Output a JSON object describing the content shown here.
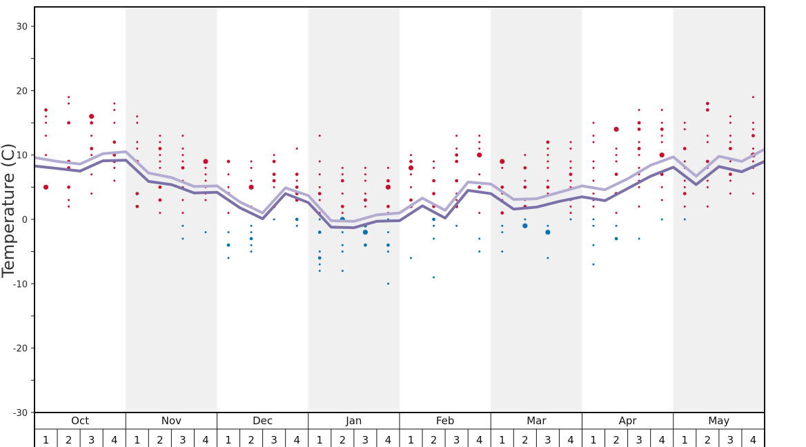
{
  "chart_data": {
    "type": "line",
    "title": "",
    "ylabel": "Temperature (C)",
    "xlabel": "",
    "ylim": [
      -30,
      30
    ],
    "y_ticks": [
      30,
      20,
      10,
      0,
      -10,
      -20,
      -30
    ],
    "grid": false,
    "months": [
      "Oct",
      "Nov",
      "Dec",
      "Jan",
      "Feb",
      "Mar",
      "Apr",
      "May"
    ],
    "weeks": [
      "1",
      "2",
      "3",
      "4"
    ],
    "shaded_months": [
      "Nov",
      "Jan",
      "Mar",
      "May"
    ],
    "colors": {
      "warm_points": "#c8102e",
      "cold_points": "#0a74b3",
      "upper_line": "#b3abd1",
      "lower_line": "#7b70a8",
      "shade": "#f0f0f0"
    },
    "series": [
      {
        "values": [
          9.6,
          9.0,
          8.6,
          10.2,
          10.5,
          7.2,
          6.5,
          5.1,
          5.2,
          2.7,
          1.0,
          4.9,
          3.7,
          -0.2,
          -0.3,
          0.7,
          1.0,
          3.3,
          1.4,
          5.8,
          5.5,
          3.1,
          3.2,
          4.2,
          5.2,
          4.6,
          6.3,
          8.4,
          9.7,
          6.7,
          9.8,
          9.0,
          10.9
        ]
      },
      {
        "values": [
          8.3,
          7.9,
          7.5,
          9.1,
          9.2,
          5.9,
          5.4,
          4.1,
          4.2,
          1.8,
          0.1,
          4.0,
          2.6,
          -1.2,
          -1.3,
          -0.3,
          -0.2,
          2.1,
          0.2,
          4.5,
          4.0,
          1.6,
          1.9,
          2.8,
          3.5,
          2.9,
          4.8,
          6.7,
          8.1,
          5.4,
          8.2,
          7.4,
          9.0
        ]
      }
    ],
    "points": [
      [
        1,
        17,
        2
      ],
      [
        1,
        16,
        1
      ],
      [
        1,
        15,
        1
      ],
      [
        1,
        13,
        1
      ],
      [
        1,
        10,
        1
      ],
      [
        1,
        5,
        3
      ],
      [
        2,
        19,
        1
      ],
      [
        2,
        18,
        1
      ],
      [
        2,
        15,
        2
      ],
      [
        2,
        9,
        2
      ],
      [
        2,
        8,
        2
      ],
      [
        2,
        5,
        2
      ],
      [
        2,
        3,
        1
      ],
      [
        2,
        2,
        1
      ],
      [
        3,
        16,
        3
      ],
      [
        3,
        15,
        2
      ],
      [
        3,
        13,
        1
      ],
      [
        3,
        11,
        2
      ],
      [
        3,
        10,
        1
      ],
      [
        3,
        7,
        1
      ],
      [
        3,
        4,
        1
      ],
      [
        4,
        18,
        1
      ],
      [
        4,
        17,
        1
      ],
      [
        4,
        15,
        1
      ],
      [
        4,
        12,
        2
      ],
      [
        4,
        10,
        2
      ],
      [
        4,
        9,
        2
      ],
      [
        4,
        8,
        1
      ],
      [
        4,
        6,
        1
      ],
      [
        5,
        16,
        1
      ],
      [
        5,
        15,
        1
      ],
      [
        5,
        12,
        1
      ],
      [
        5,
        11,
        1
      ],
      [
        5,
        9,
        2
      ],
      [
        5,
        4,
        2
      ],
      [
        5,
        2,
        2
      ],
      [
        6,
        13,
        1
      ],
      [
        6,
        12,
        1
      ],
      [
        6,
        11,
        2
      ],
      [
        6,
        10,
        1
      ],
      [
        6,
        9,
        1
      ],
      [
        6,
        8,
        1
      ],
      [
        6,
        5,
        2
      ],
      [
        6,
        3,
        2
      ],
      [
        6,
        1,
        1
      ],
      [
        7,
        13,
        1
      ],
      [
        7,
        11,
        1
      ],
      [
        7,
        10,
        1
      ],
      [
        7,
        9,
        1
      ],
      [
        7,
        8,
        2
      ],
      [
        7,
        6,
        1
      ],
      [
        7,
        5,
        1
      ],
      [
        7,
        3,
        1
      ],
      [
        7,
        1,
        1
      ],
      [
        7,
        -1,
        -1
      ],
      [
        7,
        -3,
        -1
      ],
      [
        8,
        9,
        3
      ],
      [
        8,
        8,
        1
      ],
      [
        8,
        7,
        1
      ],
      [
        8,
        6,
        1
      ],
      [
        8,
        5,
        1
      ],
      [
        8,
        4,
        1
      ],
      [
        8,
        3,
        1
      ],
      [
        8,
        -2,
        -1
      ],
      [
        9,
        9,
        2
      ],
      [
        9,
        7,
        1
      ],
      [
        9,
        5,
        1
      ],
      [
        9,
        4,
        2
      ],
      [
        9,
        1,
        1
      ],
      [
        9,
        -2,
        -1
      ],
      [
        9,
        -4,
        -2
      ],
      [
        9,
        -6,
        -1
      ],
      [
        10,
        9,
        1
      ],
      [
        10,
        8,
        1
      ],
      [
        10,
        6,
        1
      ],
      [
        10,
        5,
        3
      ],
      [
        10,
        2,
        1
      ],
      [
        10,
        1,
        1
      ],
      [
        10,
        -1,
        -1
      ],
      [
        10,
        -2,
        -1
      ],
      [
        10,
        -3,
        -2
      ],
      [
        10,
        -4,
        -1
      ],
      [
        10,
        -5,
        -1
      ],
      [
        11,
        10,
        1
      ],
      [
        11,
        9,
        2
      ],
      [
        11,
        7,
        2
      ],
      [
        11,
        6,
        2
      ],
      [
        11,
        5,
        1
      ],
      [
        11,
        3,
        1
      ],
      [
        11,
        2,
        2
      ],
      [
        11,
        0,
        -1
      ],
      [
        12,
        11,
        1
      ],
      [
        12,
        7,
        2
      ],
      [
        12,
        6,
        1
      ],
      [
        12,
        5,
        2
      ],
      [
        12,
        4,
        2
      ],
      [
        12,
        3,
        2
      ],
      [
        12,
        0,
        -2
      ],
      [
        12,
        -1,
        -1
      ],
      [
        13,
        13,
        1
      ],
      [
        13,
        9,
        1
      ],
      [
        13,
        7,
        1
      ],
      [
        13,
        5,
        1
      ],
      [
        13,
        4,
        2
      ],
      [
        13,
        3,
        1
      ],
      [
        13,
        1,
        1
      ],
      [
        13,
        0,
        -1
      ],
      [
        13,
        -2,
        -2
      ],
      [
        13,
        -5,
        -1
      ],
      [
        13,
        -6,
        -2
      ],
      [
        13,
        -7,
        -1
      ],
      [
        13,
        -8,
        -1
      ],
      [
        14,
        8,
        1
      ],
      [
        14,
        7,
        1
      ],
      [
        14,
        6,
        2
      ],
      [
        14,
        4,
        1
      ],
      [
        14,
        2,
        2
      ],
      [
        14,
        1,
        1
      ],
      [
        14,
        0,
        -3
      ],
      [
        14,
        -2,
        -1
      ],
      [
        14,
        -4,
        -1
      ],
      [
        14,
        -5,
        -1
      ],
      [
        14,
        -8,
        -1
      ],
      [
        15,
        8,
        1
      ],
      [
        15,
        7,
        1
      ],
      [
        15,
        6,
        1
      ],
      [
        15,
        4,
        1
      ],
      [
        15,
        3,
        2
      ],
      [
        15,
        2,
        1
      ],
      [
        15,
        -1,
        -2
      ],
      [
        15,
        -2,
        -3
      ],
      [
        15,
        -4,
        -2
      ],
      [
        16,
        8,
        1
      ],
      [
        16,
        6,
        2
      ],
      [
        16,
        5,
        3
      ],
      [
        16,
        2,
        2
      ],
      [
        16,
        1,
        1
      ],
      [
        16,
        0,
        -1
      ],
      [
        16,
        -2,
        -1
      ],
      [
        16,
        -4,
        -2
      ],
      [
        16,
        -5,
        -1
      ],
      [
        16,
        -10,
        -1
      ],
      [
        17,
        10,
        1
      ],
      [
        17,
        9,
        2
      ],
      [
        17,
        8,
        3
      ],
      [
        17,
        7,
        1
      ],
      [
        17,
        5,
        1
      ],
      [
        17,
        3,
        2
      ],
      [
        17,
        2,
        2
      ],
      [
        17,
        -6,
        -1
      ],
      [
        18,
        9,
        1
      ],
      [
        18,
        8,
        1
      ],
      [
        18,
        6,
        2
      ],
      [
        18,
        4,
        2
      ],
      [
        18,
        2,
        2
      ],
      [
        18,
        0,
        -2
      ],
      [
        18,
        -1,
        -1
      ],
      [
        18,
        -3,
        -1
      ],
      [
        18,
        -9,
        -1
      ],
      [
        19,
        13,
        1
      ],
      [
        19,
        11,
        1
      ],
      [
        19,
        10,
        2
      ],
      [
        19,
        9,
        2
      ],
      [
        19,
        6,
        2
      ],
      [
        19,
        4,
        1
      ],
      [
        19,
        3,
        1
      ],
      [
        19,
        2,
        2
      ],
      [
        19,
        -1,
        -1
      ],
      [
        20,
        13,
        1
      ],
      [
        20,
        12,
        1
      ],
      [
        20,
        11,
        1
      ],
      [
        20,
        10,
        3
      ],
      [
        20,
        7,
        1
      ],
      [
        20,
        5,
        2
      ],
      [
        20,
        1,
        1
      ],
      [
        20,
        -3,
        -1
      ],
      [
        20,
        -5,
        -1
      ],
      [
        21,
        9,
        3
      ],
      [
        21,
        8,
        1
      ],
      [
        21,
        5,
        2
      ],
      [
        21,
        4,
        1
      ],
      [
        21,
        3,
        1
      ],
      [
        21,
        1,
        2
      ],
      [
        21,
        -1,
        -1
      ],
      [
        21,
        -2,
        -1
      ],
      [
        21,
        -5,
        -1
      ],
      [
        22,
        10,
        1
      ],
      [
        22,
        8,
        2
      ],
      [
        22,
        6,
        1
      ],
      [
        22,
        5,
        2
      ],
      [
        22,
        3,
        1
      ],
      [
        22,
        2,
        2
      ],
      [
        22,
        0,
        -1
      ],
      [
        22,
        -1,
        -3
      ],
      [
        23,
        12,
        2
      ],
      [
        23,
        11,
        1
      ],
      [
        23,
        10,
        1
      ],
      [
        23,
        9,
        1
      ],
      [
        23,
        8,
        1
      ],
      [
        23,
        6,
        1
      ],
      [
        23,
        5,
        2
      ],
      [
        23,
        4,
        1
      ],
      [
        23,
        -1,
        -1
      ],
      [
        23,
        -2,
        -3
      ],
      [
        23,
        -6,
        -1
      ],
      [
        24,
        12,
        1
      ],
      [
        24,
        11,
        1
      ],
      [
        24,
        9,
        1
      ],
      [
        24,
        8,
        1
      ],
      [
        24,
        7,
        2
      ],
      [
        24,
        6,
        1
      ],
      [
        24,
        5,
        1
      ],
      [
        24,
        3,
        1
      ],
      [
        24,
        2,
        1
      ],
      [
        24,
        1,
        1
      ],
      [
        24,
        0,
        -1
      ],
      [
        25,
        15,
        1
      ],
      [
        25,
        13,
        1
      ],
      [
        25,
        12,
        1
      ],
      [
        25,
        9,
        1
      ],
      [
        25,
        8,
        1
      ],
      [
        25,
        6,
        1
      ],
      [
        25,
        4,
        1
      ],
      [
        25,
        3,
        1
      ],
      [
        25,
        2,
        1
      ],
      [
        25,
        0,
        -1
      ],
      [
        25,
        -1,
        -1
      ],
      [
        25,
        -4,
        -1
      ],
      [
        25,
        -7,
        -1
      ],
      [
        26,
        14,
        3
      ],
      [
        26,
        11,
        1
      ],
      [
        26,
        10,
        1
      ],
      [
        26,
        9,
        1
      ],
      [
        26,
        7,
        2
      ],
      [
        26,
        4,
        2
      ],
      [
        26,
        1,
        1
      ],
      [
        26,
        -1,
        -1
      ],
      [
        26,
        -3,
        -2
      ],
      [
        27,
        17,
        1
      ],
      [
        27,
        15,
        2
      ],
      [
        27,
        14,
        2
      ],
      [
        27,
        12,
        1
      ],
      [
        27,
        11,
        2
      ],
      [
        27,
        10,
        1
      ],
      [
        27,
        8,
        1
      ],
      [
        27,
        7,
        1
      ],
      [
        27,
        6,
        1
      ],
      [
        27,
        5,
        1
      ],
      [
        27,
        2,
        1
      ],
      [
        27,
        -3,
        -1
      ],
      [
        28,
        17,
        1
      ],
      [
        28,
        15,
        1
      ],
      [
        28,
        14,
        2
      ],
      [
        28,
        13,
        1
      ],
      [
        28,
        12,
        1
      ],
      [
        28,
        10,
        3
      ],
      [
        28,
        9,
        1
      ],
      [
        28,
        7,
        2
      ],
      [
        28,
        5,
        1
      ],
      [
        28,
        3,
        1
      ],
      [
        28,
        0,
        -1
      ],
      [
        29,
        15,
        1
      ],
      [
        29,
        14,
        1
      ],
      [
        29,
        11,
        2
      ],
      [
        29,
        9,
        1
      ],
      [
        29,
        8,
        1
      ],
      [
        29,
        6,
        1
      ],
      [
        29,
        5,
        1
      ],
      [
        29,
        4,
        2
      ],
      [
        29,
        2,
        1
      ],
      [
        29,
        0,
        -1
      ],
      [
        30,
        18,
        2
      ],
      [
        30,
        17,
        2
      ],
      [
        30,
        13,
        1
      ],
      [
        30,
        12,
        1
      ],
      [
        30,
        9,
        2
      ],
      [
        30,
        8,
        1
      ],
      [
        30,
        6,
        1
      ],
      [
        30,
        5,
        1
      ],
      [
        30,
        2,
        1
      ],
      [
        31,
        16,
        1
      ],
      [
        31,
        15,
        1
      ],
      [
        31,
        13,
        1
      ],
      [
        31,
        12,
        1
      ],
      [
        31,
        11,
        2
      ],
      [
        31,
        9,
        1
      ],
      [
        31,
        7,
        2
      ],
      [
        31,
        6,
        1
      ],
      [
        31,
        4,
        1
      ],
      [
        32,
        19,
        1
      ],
      [
        32,
        15,
        1
      ],
      [
        32,
        14,
        1
      ],
      [
        32,
        13,
        2
      ],
      [
        32,
        11,
        1
      ],
      [
        32,
        10,
        3
      ],
      [
        32,
        9,
        1
      ],
      [
        32,
        8,
        1
      ],
      [
        32,
        4,
        1
      ]
    ]
  }
}
